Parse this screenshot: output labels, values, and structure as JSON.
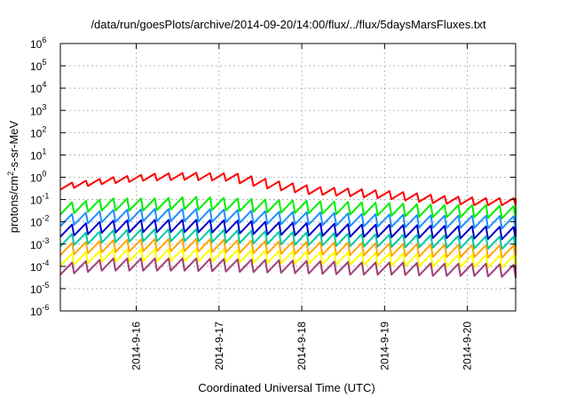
{
  "chart_data": {
    "type": "line",
    "title": "/data/run/goesPlots/archive/2014-09-20/14:00/flux/../flux/5daysMarsFluxes.txt",
    "xlabel": "Coordinated Universal Time (UTC)",
    "ylabel": {
      "prefix": "protons/cm",
      "sup": "2",
      "suffix": "-s-sr-MeV"
    },
    "yscale": "log",
    "ylim": [
      1e-06,
      1000000.0
    ],
    "yticks": [
      {
        "base": "10",
        "exp": "-6",
        "value": 1e-06
      },
      {
        "base": "10",
        "exp": "-5",
        "value": 1e-05
      },
      {
        "base": "10",
        "exp": "-4",
        "value": 0.0001
      },
      {
        "base": "10",
        "exp": "-3",
        "value": 0.001
      },
      {
        "base": "10",
        "exp": "-2",
        "value": 0.01
      },
      {
        "base": "10",
        "exp": "-1",
        "value": 0.1
      },
      {
        "base": "10",
        "exp": "0",
        "value": 1
      },
      {
        "base": "10",
        "exp": "1",
        "value": 10
      },
      {
        "base": "10",
        "exp": "2",
        "value": 100
      },
      {
        "base": "10",
        "exp": "3",
        "value": 1000
      },
      {
        "base": "10",
        "exp": "4",
        "value": 10000
      },
      {
        "base": "10",
        "exp": "5",
        "value": 100000
      },
      {
        "base": "10",
        "exp": "6",
        "value": 1000000
      }
    ],
    "xlim": [
      "2014-09-15 02:00",
      "2014-09-20 14:00"
    ],
    "xticks": [
      {
        "label": "2014-9-16",
        "date": "2014-09-16 00:00"
      },
      {
        "label": "2014-9-17",
        "date": "2014-09-17 00:00"
      },
      {
        "label": "2014-9-18",
        "date": "2014-09-18 00:00"
      },
      {
        "label": "2014-9-19",
        "date": "2014-09-19 00:00"
      },
      {
        "label": "2014-9-20",
        "date": "2014-09-20 00:00"
      }
    ],
    "grid": true,
    "legend": "none",
    "series": [
      {
        "color": "#ff0000",
        "x": [
          "2014-09-15 02:00",
          "2014-09-15 14:00",
          "2014-09-16 02:00",
          "2014-09-16 14:00",
          "2014-09-17 02:00",
          "2014-09-17 14:00",
          "2014-09-18 02:00",
          "2014-09-18 14:00",
          "2014-09-19 02:00",
          "2014-09-19 14:00",
          "2014-09-20 02:00",
          "2014-09-20 14:00"
        ],
        "y": [
          0.4,
          0.7,
          1.0,
          1.1,
          1.0,
          0.45,
          0.25,
          0.2,
          0.15,
          0.1,
          0.08,
          0.08
        ]
      },
      {
        "color": "#00ee00",
        "x": [
          "2014-09-15 02:00",
          "2014-09-15 14:00",
          "2014-09-16 02:00",
          "2014-09-16 14:00",
          "2014-09-17 02:00",
          "2014-09-17 14:00",
          "2014-09-18 02:00",
          "2014-09-18 14:00",
          "2014-09-19 02:00",
          "2014-09-19 14:00",
          "2014-09-20 02:00",
          "2014-09-20 14:00"
        ],
        "y": [
          0.04,
          0.06,
          0.06,
          0.07,
          0.06,
          0.05,
          0.045,
          0.04,
          0.035,
          0.03,
          0.03,
          0.025
        ]
      },
      {
        "color": "#1e90ff",
        "x": [
          "2014-09-15 02:00",
          "2014-09-15 14:00",
          "2014-09-16 02:00",
          "2014-09-16 14:00",
          "2014-09-17 02:00",
          "2014-09-17 14:00",
          "2014-09-18 02:00",
          "2014-09-18 14:00",
          "2014-09-19 02:00",
          "2014-09-19 14:00",
          "2014-09-20 02:00",
          "2014-09-20 14:00"
        ],
        "y": [
          0.012,
          0.018,
          0.02,
          0.02,
          0.018,
          0.015,
          0.014,
          0.012,
          0.011,
          0.01,
          0.01,
          0.009
        ]
      },
      {
        "color": "#0000cd",
        "x": [
          "2014-09-15 02:00",
          "2014-09-15 14:00",
          "2014-09-16 02:00",
          "2014-09-16 14:00",
          "2014-09-17 02:00",
          "2014-09-17 14:00",
          "2014-09-18 02:00",
          "2014-09-18 14:00",
          "2014-09-19 02:00",
          "2014-09-19 14:00",
          "2014-09-20 02:00",
          "2014-09-20 14:00"
        ],
        "y": [
          0.004,
          0.006,
          0.0065,
          0.0065,
          0.006,
          0.005,
          0.0045,
          0.004,
          0.0038,
          0.0035,
          0.0033,
          0.003
        ]
      },
      {
        "color": "#00c8a0",
        "x": [
          "2014-09-15 02:00",
          "2014-09-15 14:00",
          "2014-09-16 02:00",
          "2014-09-16 14:00",
          "2014-09-17 02:00",
          "2014-09-17 14:00",
          "2014-09-18 02:00",
          "2014-09-18 14:00",
          "2014-09-19 02:00",
          "2014-09-19 14:00",
          "2014-09-20 02:00",
          "2014-09-20 14:00"
        ],
        "y": [
          0.0015,
          0.0022,
          0.0025,
          0.0025,
          0.0022,
          0.0019,
          0.0017,
          0.0015,
          0.0014,
          0.0013,
          0.0012,
          0.0011
        ]
      },
      {
        "color": "#ffa500",
        "x": [
          "2014-09-15 02:00",
          "2014-09-15 14:00",
          "2014-09-16 02:00",
          "2014-09-16 14:00",
          "2014-09-17 02:00",
          "2014-09-17 14:00",
          "2014-09-18 02:00",
          "2014-09-18 14:00",
          "2014-09-19 02:00",
          "2014-09-19 14:00",
          "2014-09-20 02:00",
          "2014-09-20 14:00"
        ],
        "y": [
          0.0006,
          0.0008,
          0.0009,
          0.0009,
          0.0008,
          0.0007,
          0.00065,
          0.0006,
          0.00055,
          0.0005,
          0.00048,
          0.00045
        ]
      },
      {
        "color": "#ffff00",
        "x": [
          "2014-09-15 02:00",
          "2014-09-15 14:00",
          "2014-09-16 02:00",
          "2014-09-16 14:00",
          "2014-09-17 02:00",
          "2014-09-17 14:00",
          "2014-09-18 02:00",
          "2014-09-18 14:00",
          "2014-09-19 02:00",
          "2014-09-19 14:00",
          "2014-09-20 02:00",
          "2014-09-20 14:00"
        ],
        "y": [
          0.0002,
          0.0003,
          0.00032,
          0.00032,
          0.0003,
          0.00026,
          0.00024,
          0.00022,
          0.0002,
          0.00018,
          0.00017,
          0.00016
        ]
      },
      {
        "color": "#a0407a",
        "x": [
          "2014-09-15 02:00",
          "2014-09-15 14:00",
          "2014-09-16 02:00",
          "2014-09-16 14:00",
          "2014-09-17 02:00",
          "2014-09-17 14:00",
          "2014-09-18 02:00",
          "2014-09-18 14:00",
          "2014-09-19 02:00",
          "2014-09-19 14:00",
          "2014-09-20 02:00",
          "2014-09-20 14:00"
        ],
        "y": [
          8e-05,
          0.00012,
          0.00012,
          0.00012,
          0.00011,
          0.0001,
          9e-05,
          8e-05,
          8e-05,
          7e-05,
          7e-05,
          6e-05
        ]
      }
    ]
  }
}
